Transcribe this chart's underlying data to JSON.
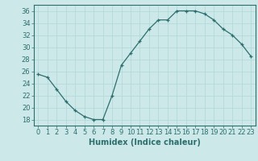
{
  "x": [
    0,
    1,
    2,
    3,
    4,
    5,
    6,
    7,
    8,
    9,
    10,
    11,
    12,
    13,
    14,
    15,
    16,
    17,
    18,
    19,
    20,
    21,
    22,
    23
  ],
  "y": [
    25.5,
    25.0,
    23.0,
    21.0,
    19.5,
    18.5,
    18.0,
    18.0,
    22.0,
    27.0,
    29.0,
    31.0,
    33.0,
    34.5,
    34.5,
    36.0,
    36.0,
    36.0,
    35.5,
    34.5,
    33.0,
    32.0,
    30.5,
    28.5
  ],
  "xlabel": "Humidex (Indice chaleur)",
  "xlim": [
    -0.5,
    23.5
  ],
  "ylim": [
    17,
    37
  ],
  "yticks": [
    18,
    20,
    22,
    24,
    26,
    28,
    30,
    32,
    34,
    36
  ],
  "xticks": [
    0,
    1,
    2,
    3,
    4,
    5,
    6,
    7,
    8,
    9,
    10,
    11,
    12,
    13,
    14,
    15,
    16,
    17,
    18,
    19,
    20,
    21,
    22,
    23
  ],
  "line_color": "#2d6e6e",
  "marker": "+",
  "bg_color": "#cce8e8",
  "grid_color": "#b0d8d8",
  "label_fontsize": 7,
  "tick_fontsize": 6
}
